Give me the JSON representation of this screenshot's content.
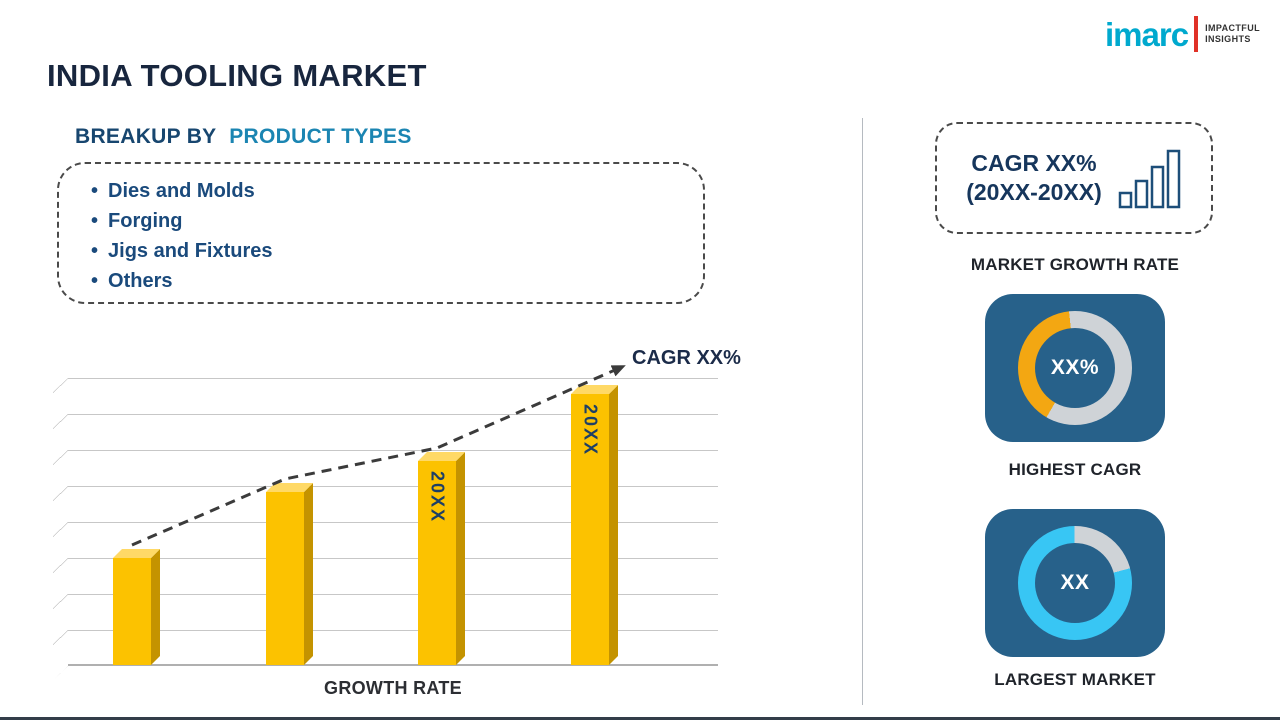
{
  "logo": {
    "brand": "imarc",
    "tagline": [
      "IMPACTFUL",
      "INSIGHTS"
    ]
  },
  "title": "INDIA TOOLING MARKET",
  "breakup": {
    "heading_prefix": "BREAKUP BY",
    "heading_accent": "PRODUCT TYPES",
    "bullet": "•",
    "items": [
      "Dies and Molds",
      "Forging",
      "Jigs and Fixtures",
      "Others"
    ]
  },
  "chart_data": [
    {
      "type": "bar",
      "title": "",
      "xlabel": "GROWTH RATE",
      "ylabel": "",
      "categories": [
        "",
        "",
        "20XX",
        "20XX"
      ],
      "values": [
        37,
        60,
        71,
        94
      ],
      "values_note": "placeholder infographic; values are relative bar heights in % of plot height",
      "bar_color": "#FCC200",
      "grid": true,
      "gridline_count": 8,
      "annotation": "CAGR XX%",
      "trend": "rising dashed arrow over bars"
    },
    {
      "type": "pie",
      "subtype": "donut",
      "title": "HIGHEST CAGR",
      "center_label": "XX%",
      "percent": 40,
      "start_deg": 210,
      "arc_color": "#F3A712",
      "base_color": "#CFD3D7"
    },
    {
      "type": "pie",
      "subtype": "donut",
      "title": "LARGEST MARKET",
      "center_label": "XX",
      "percent": 79,
      "start_deg": 75,
      "arc_color": "#38C6F4",
      "base_color": "#CFD3D7"
    }
  ],
  "sidebar": {
    "cagr_card": {
      "line1": "CAGR XX%",
      "line2": "(20XX-20XX)",
      "icon": "bar-chart-icon"
    },
    "market_growth_label": "MARKET GROWTH RATE"
  },
  "colors": {
    "title_navy": "#18263E",
    "heading_navy": "#17466F",
    "accent_teal": "#1B85B2",
    "list_text": "#1A4A7C",
    "bar_gold": "#FCC200",
    "card_bg": "#27618A",
    "logo_cyan": "#00A9CE",
    "logo_red": "#E03127",
    "divider_gray": "#B5BAC0"
  }
}
